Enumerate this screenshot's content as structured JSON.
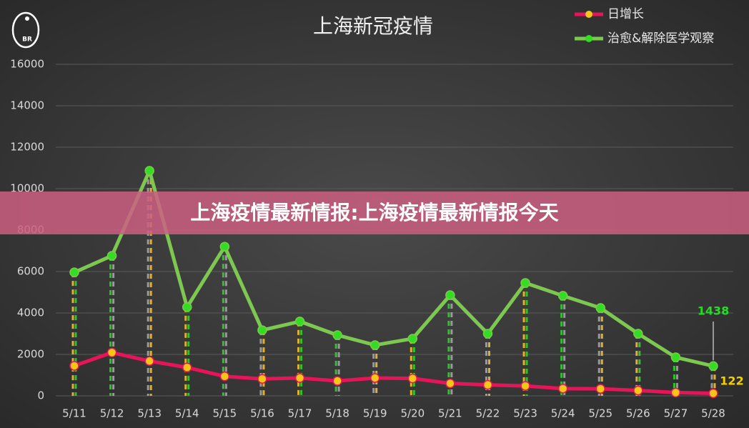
{
  "logo_text": "BR",
  "banner": "上海疫情最新情报:上海疫情最新情报今天",
  "chart_data": {
    "type": "line",
    "title": "上海新冠疫情",
    "categories": [
      "5/11",
      "5/12",
      "5/13",
      "5/14",
      "5/15",
      "5/16",
      "5/17",
      "5/18",
      "5/19",
      "5/20",
      "5/21",
      "5/22",
      "5/23",
      "5/24",
      "5/25",
      "5/26",
      "5/27",
      "5/28"
    ],
    "series": [
      {
        "name": "日增长",
        "color": "#e8145a",
        "marker_color": "#f5c518",
        "values": [
          1450,
          2090,
          1680,
          1370,
          940,
          820,
          860,
          720,
          860,
          840,
          600,
          530,
          480,
          350,
          340,
          260,
          160,
          122
        ]
      },
      {
        "name": "治愈&解除医学观察",
        "color": "#7dc850",
        "marker_color": "#33dd22",
        "values": [
          5960,
          6760,
          10860,
          4280,
          7200,
          3170,
          3590,
          2930,
          2450,
          2760,
          4860,
          3000,
          5450,
          4830,
          4240,
          3000,
          1860,
          1438
        ]
      }
    ],
    "ylim": [
      0,
      16000
    ],
    "yticks": [
      0,
      2000,
      4000,
      6000,
      8000,
      10000,
      12000,
      14000,
      16000
    ],
    "grid": true,
    "legend": "top-right"
  }
}
